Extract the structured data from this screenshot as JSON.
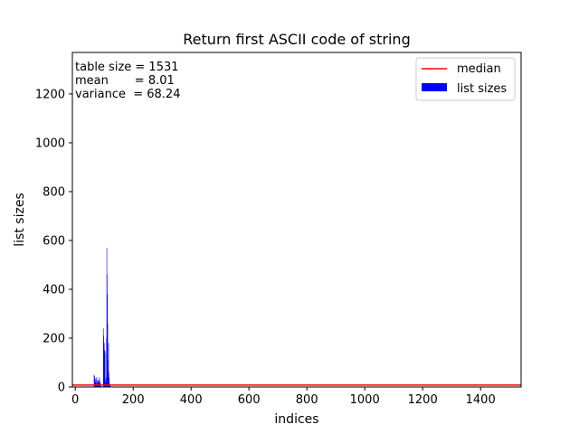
{
  "chart_data": {
    "type": "bar",
    "title": "Return first ASCII code of string",
    "xlabel": "indices",
    "ylabel": "list sizes",
    "xlim": [
      -10,
      1540
    ],
    "ylim": [
      0,
      1370
    ],
    "xticks": [
      0,
      200,
      400,
      600,
      800,
      1000,
      1200,
      1400
    ],
    "yticks": [
      0,
      200,
      400,
      600,
      800,
      1000,
      1200
    ],
    "stats_text": [
      "table size = 1531",
      "mean       = 8.01",
      "variance  = 68.24"
    ],
    "legend": {
      "placement": "top-right",
      "entries": [
        "median",
        "list sizes"
      ]
    },
    "colors": {
      "median": "#ff0000",
      "bars": "#0000ff"
    },
    "median": 8,
    "series": [
      {
        "name": "list sizes",
        "x": [
          65,
          66,
          67,
          68,
          69,
          70,
          71,
          72,
          73,
          74,
          75,
          76,
          77,
          78,
          79,
          80,
          81,
          82,
          83,
          84,
          85,
          86,
          87,
          88,
          89,
          90,
          97,
          98,
          99,
          100,
          101,
          102,
          103,
          104,
          105,
          106,
          107,
          108,
          109,
          110,
          111,
          112,
          113,
          114,
          115,
          116,
          117,
          118,
          119,
          120,
          121,
          122
        ],
        "values": [
          50,
          30,
          45,
          20,
          18,
          35,
          25,
          15,
          40,
          8,
          12,
          30,
          20,
          28,
          10,
          22,
          5,
          25,
          40,
          30,
          5,
          15,
          20,
          2,
          3,
          2,
          240,
          210,
          180,
          180,
          90,
          150,
          140,
          30,
          20,
          10,
          40,
          200,
          570,
          460,
          380,
          260,
          110,
          70,
          180,
          60,
          40,
          20,
          10,
          8,
          5,
          3
        ]
      }
    ]
  }
}
